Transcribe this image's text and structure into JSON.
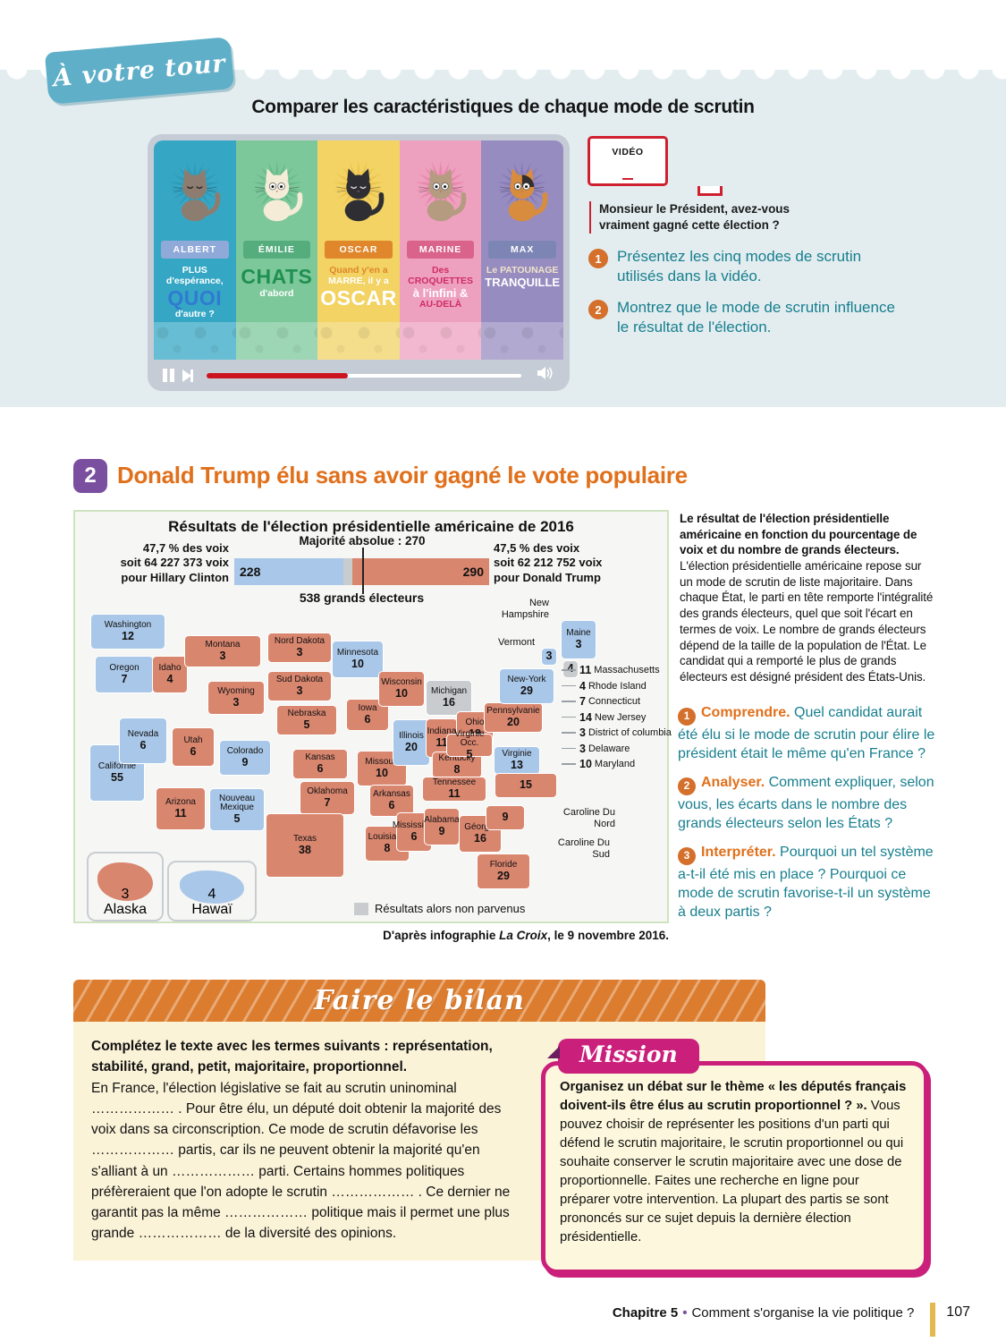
{
  "banner": {
    "label": "À votre tour"
  },
  "page_title": "Comparer les caractéristiques de chaque mode de scrutin",
  "video": {
    "label": "VIDÉO",
    "caption": "Monsieur le Président, avez-vous vraiment gagné cette élection ?",
    "cats": [
      {
        "name": "ALBERT",
        "slogan_lines": [
          "PLUS d'espérance,",
          "QUOI",
          "d'autre ?"
        ]
      },
      {
        "name": "ÉMILIE",
        "slogan_lines": [
          "CHATS",
          "d'abord"
        ]
      },
      {
        "name": "OSCAR",
        "slogan_lines": [
          "Quand y'en a",
          "MARRE, il y a",
          "OSCAR"
        ]
      },
      {
        "name": "MARINE",
        "slogan_lines": [
          "Des CROQUETTES",
          "à l'infini &",
          "AU-DELÀ"
        ]
      },
      {
        "name": "MAX",
        "slogan_lines": [
          "Le PATOUNAGE",
          "TRANQUILLE"
        ]
      }
    ]
  },
  "questions_video": [
    {
      "num": "1",
      "text": "Présentez les cinq modes de scrutin utilisés dans la vidéo."
    },
    {
      "num": "2",
      "text": "Montrez que le mode de scrutin influence le résultat de l'élection."
    }
  ],
  "section2": {
    "num": "2",
    "title": "Donald Trump élu sans avoir gagné le vote populaire"
  },
  "infographic": {
    "title": "Résultats de l'élection présidentielle américaine de 2016",
    "clinton_label": "47,7 % des voix\nsoit 64 227 373 voix\npour Hillary Clinton",
    "trump_label": "47,5 % des voix\nsoit 62 212 752 voix\npour Donald Trump",
    "majority_label": "Majorité absolue : 270",
    "total_label": "538 grands électeurs",
    "legend": "Résultats alors non parvenus",
    "source_prefix": "D'après infographie ",
    "source_italic": "La Croix",
    "source_suffix": ", le 9 novembre 2016."
  },
  "chart_data": {
    "type": "bar",
    "title": "Résultats de l'élection présidentielle américaine de 2016",
    "total": 538,
    "majority": 270,
    "series": [
      {
        "name": "Hillary Clinton",
        "value": 228,
        "color": "#a9c7e8",
        "pct": "47,7 %",
        "voix": "64 227 373"
      },
      {
        "name": "Résultats alors non parvenus",
        "value": 20,
        "color": "#c9cccf"
      },
      {
        "name": "Donald Trump",
        "value": 290,
        "color": "#d9866f",
        "pct": "47,5 %",
        "voix": "62 212 752"
      }
    ],
    "map_states": [
      {
        "name": "Washington",
        "votes": 12,
        "winner": "clinton"
      },
      {
        "name": "Oregon",
        "votes": 7,
        "winner": "clinton"
      },
      {
        "name": "Californie",
        "votes": 55,
        "winner": "clinton"
      },
      {
        "name": "Nevada",
        "votes": 6,
        "winner": "clinton"
      },
      {
        "name": "Idaho",
        "votes": 4,
        "winner": "trump"
      },
      {
        "name": "Montana",
        "votes": 3,
        "winner": "trump"
      },
      {
        "name": "Wyoming",
        "votes": 3,
        "winner": "trump"
      },
      {
        "name": "Utah",
        "votes": 6,
        "winner": "trump"
      },
      {
        "name": "Arizona",
        "votes": 11,
        "winner": "trump"
      },
      {
        "name": "Nouveau Mexique",
        "votes": 5,
        "winner": "clinton"
      },
      {
        "name": "Colorado",
        "votes": 9,
        "winner": "clinton"
      },
      {
        "name": "Nord Dakota",
        "votes": 3,
        "winner": "trump"
      },
      {
        "name": "Sud Dakota",
        "votes": 3,
        "winner": "trump"
      },
      {
        "name": "Nebraska",
        "votes": 5,
        "winner": "trump"
      },
      {
        "name": "Kansas",
        "votes": 6,
        "winner": "trump"
      },
      {
        "name": "Oklahoma",
        "votes": 7,
        "winner": "trump"
      },
      {
        "name": "Texas",
        "votes": 38,
        "winner": "trump"
      },
      {
        "name": "Minnesota",
        "votes": 10,
        "winner": "clinton"
      },
      {
        "name": "Iowa",
        "votes": 6,
        "winner": "trump"
      },
      {
        "name": "Missouri",
        "votes": 10,
        "winner": "trump"
      },
      {
        "name": "Arkansas",
        "votes": 6,
        "winner": "trump"
      },
      {
        "name": "Louisiane",
        "votes": 8,
        "winner": "trump"
      },
      {
        "name": "Wisconsin",
        "votes": 10,
        "winner": "trump"
      },
      {
        "name": "Illinois",
        "votes": 20,
        "winner": "clinton"
      },
      {
        "name": "Michigan",
        "votes": 16,
        "winner": "pending"
      },
      {
        "name": "Indiana",
        "votes": 11,
        "winner": "trump"
      },
      {
        "name": "Ohio",
        "votes": 18,
        "winner": "trump"
      },
      {
        "name": "Kentucky",
        "votes": 8,
        "winner": "trump"
      },
      {
        "name": "Tennessee",
        "votes": 11,
        "winner": "trump"
      },
      {
        "name": "Mississippi",
        "votes": 6,
        "winner": "trump"
      },
      {
        "name": "Alabama",
        "votes": 9,
        "winner": "trump"
      },
      {
        "name": "Géorgie",
        "votes": 16,
        "winner": "trump"
      },
      {
        "name": "Floride",
        "votes": 29,
        "winner": "trump"
      },
      {
        "name": "Virginie Occ.",
        "votes": 5,
        "winner": "trump"
      },
      {
        "name": "Virginie",
        "votes": 13,
        "winner": "clinton"
      },
      {
        "name": "Pennsylvanie",
        "votes": 20,
        "winner": "trump"
      },
      {
        "name": "New-York",
        "votes": 29,
        "winner": "clinton"
      },
      {
        "name": "Maine",
        "votes": 3,
        "winner": "clinton"
      },
      {
        "name": "Vermont",
        "votes": 3,
        "winner": "clinton"
      },
      {
        "name": "New Hampshire",
        "votes": 4,
        "winner": "pending"
      },
      {
        "name": "Caroline Du Nord",
        "votes": 15,
        "winner": "trump"
      },
      {
        "name": "Caroline Du Sud",
        "votes": 9,
        "winner": "trump"
      },
      {
        "name": "Alaska",
        "votes": 3,
        "winner": "trump"
      },
      {
        "name": "Hawaï",
        "votes": 4,
        "winner": "clinton"
      }
    ],
    "ne_callouts": [
      {
        "votes": 11,
        "name": "Massachusetts"
      },
      {
        "votes": 4,
        "name": "Rhode Island"
      },
      {
        "votes": 7,
        "name": "Connecticut"
      },
      {
        "votes": 14,
        "name": "New Jersey"
      },
      {
        "votes": 3,
        "name": "District of columbia"
      },
      {
        "votes": 3,
        "name": "Delaware"
      },
      {
        "votes": 10,
        "name": "Maryland"
      }
    ]
  },
  "article": {
    "bold": "Le résultat de l'élection présidentielle américaine en fonction du pourcentage de voix et du nombre de grands électeurs.",
    "text": " L'élection présidentielle américaine repose sur un mode de scrutin de liste majoritaire. Dans chaque État, le parti en tête remporte l'intégralité des grands électeurs, quel que soit l'écart en termes de voix. Le nombre de grands électeurs dépend de la taille de la population de l'État. Le candidat qui a remporté le plus de grands électeurs est désigné président des États-Unis."
  },
  "questions_doc": [
    {
      "num": "1",
      "lead": "Comprendre.",
      "text": " Quel candidat aurait été élu si le mode de scrutin pour élire le président était le même qu'en France ?"
    },
    {
      "num": "2",
      "lead": "Analyser.",
      "text": " Comment expliquer, selon vous, les écarts dans le nombre des grands électeurs selon les États ?"
    },
    {
      "num": "3",
      "lead": "Interpréter.",
      "text": " Pourquoi un tel système a-t-il été mis en place ? Pourquoi ce mode de scrutin favorise-t-il un système à deux partis ?"
    }
  ],
  "bilan": {
    "title": "Faire le bilan",
    "intro": "Complétez le texte avec les termes suivants : représentation, stabilité, grand, petit, majoritaire, proportionnel.",
    "body": "En France, l'élection législative se fait au scrutin uninominal ……………… . Pour être élu, un député doit obtenir la majorité des voix dans sa circonscription. Ce mode de scrutin défavorise les ……………… partis, car ils ne peuvent obtenir la majorité qu'en s'alliant à un ……………… parti. Certains hommes politiques préfèreraient que l'on adopte le scrutin ……………… . Ce dernier ne garantit pas la même ……………… politique mais il permet une plus grande ……………… de la diversité des opinions."
  },
  "mission": {
    "title": "Mission",
    "bold": "Organisez un débat sur le thème « les députés français doivent-ils être élus au scrutin proportionnel ? ».",
    "text": " Vous pouvez choisir de représenter les positions d'un parti qui défend le scrutin majoritaire, le scrutin proportionnel ou qui souhaite conserver le scrutin majoritaire avec une dose de proportionnelle. Faites une recherche en ligne pour préparer votre intervention. La plupart des partis se sont prononcés sur ce sujet depuis la dernière élection présidentielle."
  },
  "footer": {
    "chapter": "Chapitre 5",
    "separator": "•",
    "title": "Comment s'organise la vie politique ?",
    "page": "107"
  },
  "colors": {
    "accent_teal": "#177f8e",
    "accent_orange": "#e0701b",
    "accent_purple": "#7b4fa0",
    "accent_magenta": "#ca1f7b",
    "state_clinton": "#a9c7e8",
    "state_trump": "#d9866f",
    "state_pending": "#c9cccf"
  }
}
